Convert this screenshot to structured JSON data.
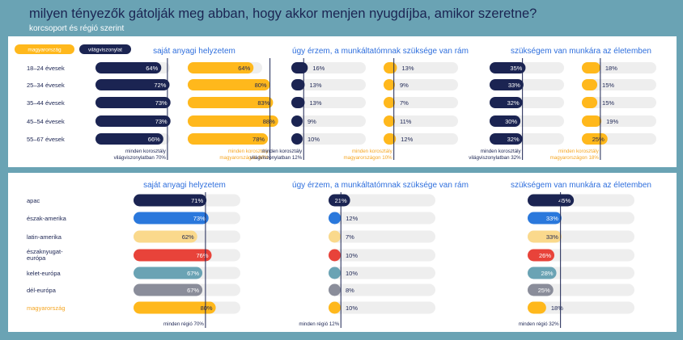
{
  "title": "milyen tényezők gátolják meg abban, hogy akkor menjen nyugdíjba, amikor szeretne?",
  "subtitle": "korcsoport és régió szerint",
  "legend": {
    "hungary": "magyarország",
    "world": "világviszonylat"
  },
  "colors": {
    "navy": "#1b2452",
    "yellow": "#ffb81c",
    "track": "#eeeeee",
    "text": "#1b2452",
    "blue_heading": "#2f6fdd",
    "orange_text": "#f5a623"
  },
  "chart_data": [
    {
      "type": "bar",
      "section": "korcsoport",
      "categories": [
        "18–24 évesek",
        "25–34 évesek",
        "35–44 évesek",
        "45–54 évesek",
        "55–67 évesek"
      ],
      "groups": [
        {
          "title": "saját anyagi helyzetem",
          "series": [
            {
              "name": "világviszonylat",
              "values": [
                64,
                72,
                73,
                73,
                66
              ],
              "reference": 70,
              "reference_label": "minden korosztály világviszonylatban 70%"
            },
            {
              "name": "magyarország",
              "values": [
                64,
                80,
                83,
                88,
                78
              ],
              "reference": 80,
              "reference_label": "minden korosztály magyarországon 80%"
            }
          ]
        },
        {
          "title": "úgy érzem, a munkáltatómnak szüksége van rám",
          "series": [
            {
              "name": "világviszonylat",
              "values": [
                16,
                13,
                13,
                9,
                10
              ],
              "reference": 12,
              "reference_label": "minden korosztály világviszonylatban 12%"
            },
            {
              "name": "magyarország",
              "values": [
                13,
                9,
                7,
                11,
                12
              ],
              "reference": 10,
              "reference_label": "minden korosztály magyarországon 10%"
            }
          ]
        },
        {
          "title": "szükségem van munkára az életemben",
          "series": [
            {
              "name": "világviszonylat",
              "values": [
                35,
                33,
                32,
                30,
                32
              ],
              "reference": 32,
              "reference_label": "minden korosztály világviszonylatban 32%"
            },
            {
              "name": "magyarország",
              "values": [
                18,
                15,
                15,
                19,
                25
              ],
              "reference": 18,
              "reference_label": "minden korosztály magyarországon 18%"
            }
          ]
        }
      ]
    },
    {
      "type": "bar",
      "section": "régió",
      "categories": [
        "apac",
        "észak-amerika",
        "latin-amerika",
        "északnyugat-európa",
        "kelet-európa",
        "dél-európa",
        "magyarország"
      ],
      "category_colors": [
        "#1b2452",
        "#2a78dc",
        "#fad98c",
        "#e8433a",
        "#6aa3b4",
        "#8a8d9a",
        "#ffb81c"
      ],
      "groups": [
        {
          "title": "saját anyagi helyzetem",
          "values": [
            71,
            73,
            62,
            76,
            67,
            67,
            80
          ],
          "reference": 70,
          "reference_label": "minden régió 70%"
        },
        {
          "title": "úgy érzem, a munkáltatómnak szüksége van rám",
          "values": [
            21,
            12,
            7,
            10,
            10,
            8,
            10
          ],
          "reference": 12,
          "reference_label": "minden régió 12%"
        },
        {
          "title": "szükségem van munkára az életemben",
          "values": [
            45,
            33,
            33,
            26,
            28,
            25,
            18
          ],
          "reference": 32,
          "reference_label": "minden régió 32%"
        }
      ]
    }
  ]
}
